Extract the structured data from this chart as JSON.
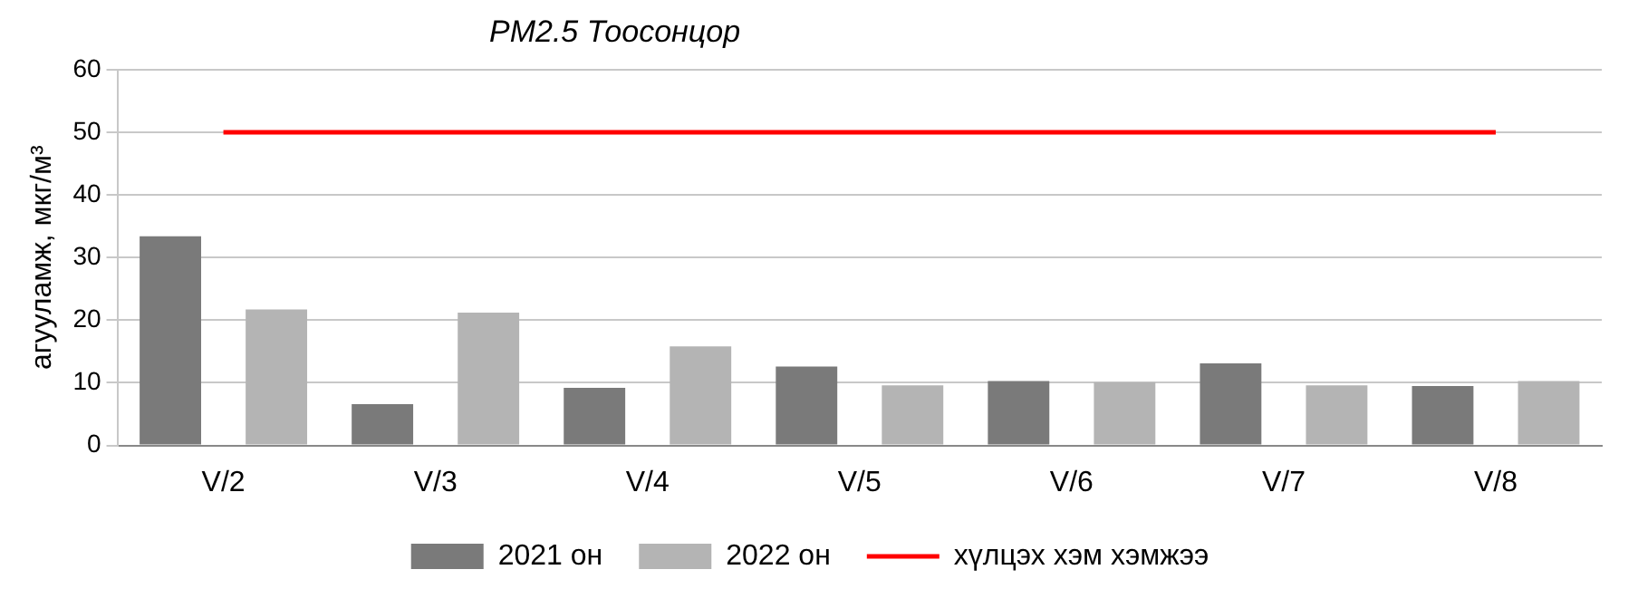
{
  "chart_data": {
    "type": "bar",
    "title": "PM2.5 Тоосонцор",
    "ylabel": "агууламж, мкг/м³",
    "categories": [
      "V/2",
      "V/3",
      "V/4",
      "V/5",
      "V/6",
      "V/7",
      "V/8"
    ],
    "series": [
      {
        "name": "2021 он",
        "color": "#7a7a7a",
        "values": [
          33.4,
          6.6,
          9.2,
          12.6,
          10.3,
          13.1,
          9.5
        ]
      },
      {
        "name": "2022 он",
        "color": "#b4b4b4",
        "values": [
          21.7,
          21.2,
          15.8,
          9.6,
          10.1,
          9.6,
          10.3
        ]
      },
      {
        "name": "хүлцэх хэм хэмжээ",
        "type": "line",
        "color": "#ff0000",
        "values": [
          50,
          50,
          50,
          50,
          50,
          50,
          50
        ]
      }
    ],
    "ylim": [
      0,
      60
    ],
    "yticks": [
      0,
      10,
      20,
      30,
      40,
      50,
      60
    ],
    "grid": "y",
    "legend": "bottom",
    "marker": "none"
  }
}
